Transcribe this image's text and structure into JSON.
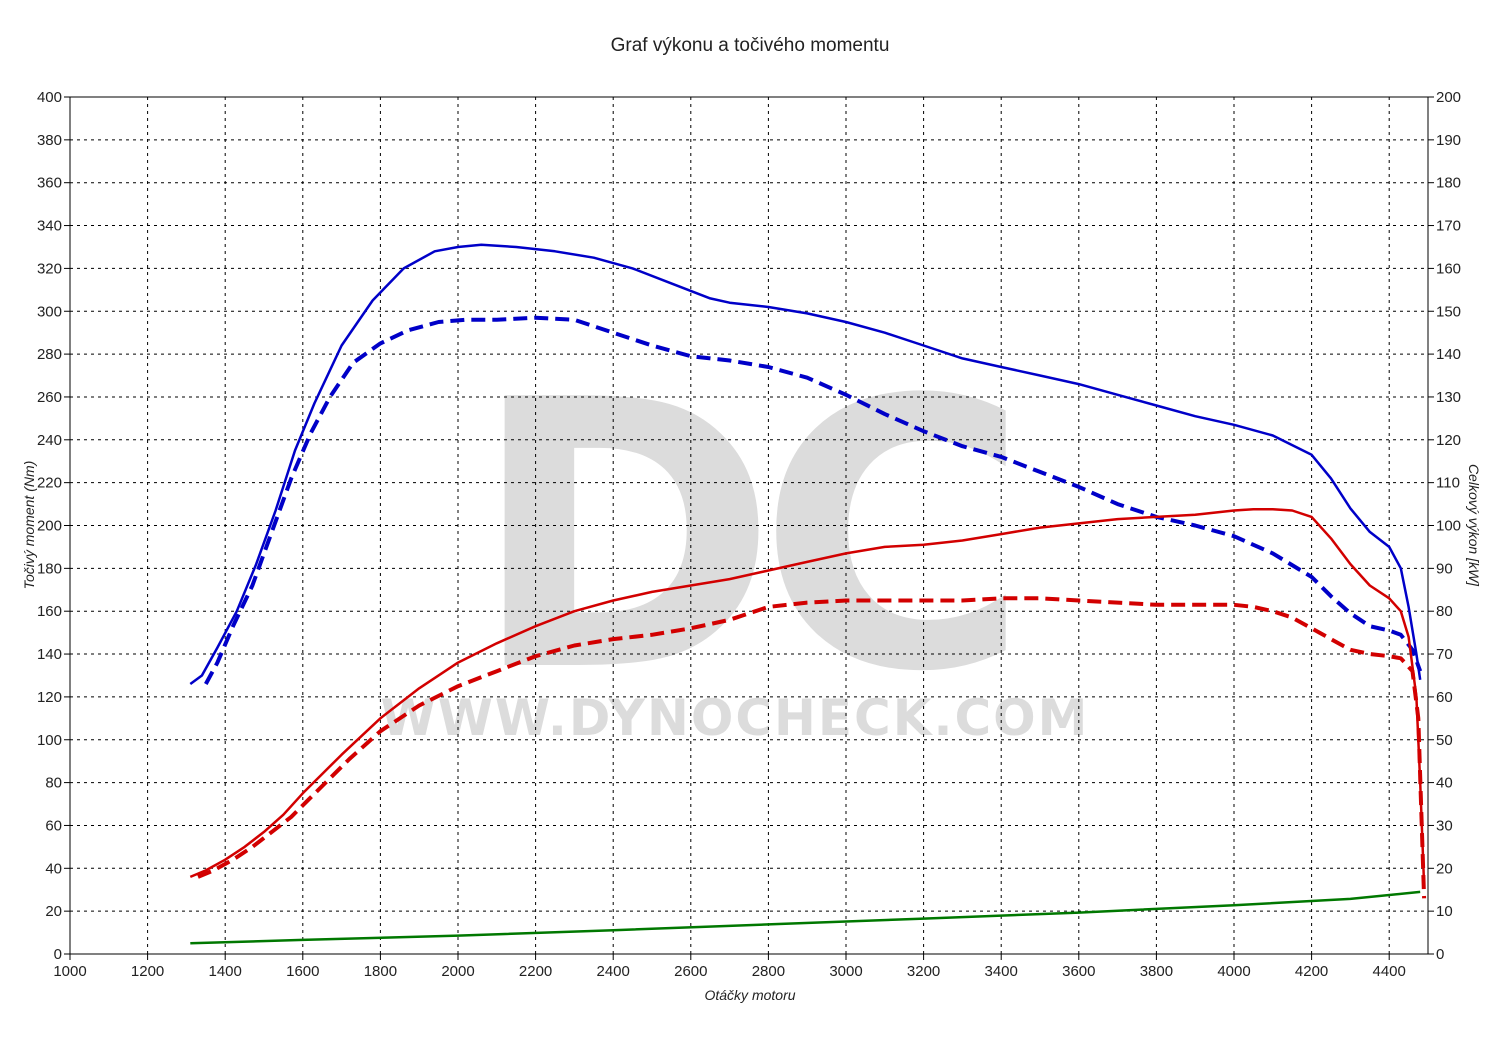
{
  "chart_data": {
    "type": "line",
    "title": "Graf výkonu a točivého momentu",
    "xlabel": "Otáčky motoru",
    "ylabel_left": "Točivý moment (Nm)",
    "ylabel_right": "Celkový výkon [kW]",
    "xlim": [
      1000,
      4500
    ],
    "ylim_left": [
      0,
      400
    ],
    "ylim_right": [
      0,
      200
    ],
    "x_ticks": [
      1000,
      1200,
      1400,
      1600,
      1800,
      2000,
      2200,
      2400,
      2600,
      2800,
      3000,
      3200,
      3400,
      3600,
      3800,
      4000,
      4200,
      4400
    ],
    "y_ticks_left": [
      0,
      20,
      40,
      60,
      80,
      100,
      120,
      140,
      160,
      180,
      200,
      220,
      240,
      260,
      280,
      300,
      320,
      340,
      360,
      380,
      400
    ],
    "y_ticks_right": [
      0,
      10,
      20,
      30,
      40,
      50,
      60,
      70,
      80,
      90,
      100,
      110,
      120,
      130,
      140,
      150,
      160,
      170,
      180,
      190,
      200
    ],
    "grid": true,
    "watermark": {
      "logo": "DC",
      "text": "WWW.DYNOCHECK.COM"
    },
    "series": [
      {
        "axis": "left",
        "color": "#0000c8",
        "dash": false,
        "width": 2.5,
        "x": [
          1310,
          1340,
          1380,
          1430,
          1480,
          1530,
          1580,
          1630,
          1700,
          1780,
          1860,
          1940,
          2000,
          2060,
          2150,
          2250,
          2350,
          2450,
          2550,
          2650,
          2700,
          2800,
          2900,
          3000,
          3100,
          3200,
          3300,
          3400,
          3500,
          3600,
          3700,
          3800,
          3900,
          4000,
          4100,
          4200,
          4250,
          4300,
          4350,
          4400,
          4430,
          4450,
          4470,
          4480
        ],
        "y": [
          126,
          130,
          143,
          160,
          182,
          207,
          235,
          257,
          284,
          305,
          320,
          328,
          330,
          331,
          330,
          328,
          325,
          320,
          313,
          306,
          304,
          302,
          299,
          295,
          290,
          284,
          278,
          274,
          270,
          266,
          261,
          256,
          251,
          247,
          242,
          233,
          222,
          208,
          197,
          190,
          180,
          162,
          140,
          128
        ]
      },
      {
        "axis": "left",
        "color": "#0000c8",
        "dash": true,
        "width": 4,
        "x": [
          1350,
          1380,
          1420,
          1470,
          1520,
          1570,
          1620,
          1670,
          1730,
          1800,
          1870,
          1950,
          2020,
          2100,
          2200,
          2300,
          2400,
          2500,
          2600,
          2700,
          2800,
          2900,
          3000,
          3100,
          3200,
          3300,
          3400,
          3500,
          3600,
          3700,
          3800,
          3900,
          4000,
          4100,
          4200,
          4250,
          4300,
          4350,
          4400,
          4430,
          4460,
          4480
        ],
        "y": [
          126,
          136,
          153,
          172,
          197,
          222,
          243,
          260,
          276,
          285,
          291,
          295,
          296,
          296,
          297,
          296,
          290,
          284,
          279,
          277,
          274,
          269,
          261,
          252,
          244,
          237,
          232,
          225,
          218,
          210,
          204,
          200,
          195,
          187,
          176,
          167,
          159,
          153,
          151,
          149,
          142,
          132
        ]
      },
      {
        "axis": "right",
        "color": "#d20000",
        "dash": false,
        "width": 2.5,
        "x": [
          1310,
          1350,
          1400,
          1450,
          1500,
          1550,
          1600,
          1650,
          1700,
          1800,
          1900,
          2000,
          2100,
          2200,
          2300,
          2400,
          2500,
          2600,
          2700,
          2800,
          2900,
          3000,
          3100,
          3200,
          3300,
          3400,
          3500,
          3600,
          3700,
          3800,
          3900,
          4000,
          4050,
          4100,
          4150,
          4200,
          4250,
          4300,
          4350,
          4400,
          4430,
          4450,
          4470,
          4480,
          4490
        ],
        "y": [
          18,
          19.5,
          22,
          25,
          28.5,
          32.5,
          37.5,
          42,
          46.5,
          55,
          62,
          68,
          72.5,
          76.5,
          80,
          82.5,
          84.5,
          86,
          87.5,
          89.5,
          91.5,
          93.5,
          95,
          95.5,
          96.5,
          98,
          99.5,
          100.5,
          101.5,
          102,
          102.5,
          103.5,
          103.8,
          103.8,
          103.5,
          102,
          97,
          91,
          86,
          83,
          80,
          74,
          60,
          40,
          16
        ]
      },
      {
        "axis": "right",
        "color": "#d20000",
        "dash": true,
        "width": 4,
        "x": [
          1330,
          1370,
          1420,
          1470,
          1520,
          1570,
          1620,
          1670,
          1720,
          1800,
          1900,
          2000,
          2100,
          2200,
          2300,
          2400,
          2500,
          2600,
          2700,
          2800,
          2900,
          3000,
          3100,
          3200,
          3300,
          3400,
          3500,
          3600,
          3700,
          3800,
          3900,
          4000,
          4050,
          4100,
          4150,
          4200,
          4250,
          4300,
          4350,
          4400,
          4430,
          4460,
          4475,
          4490
        ],
        "y": [
          18,
          19.5,
          22,
          25,
          28.5,
          32,
          36.5,
          41,
          45.5,
          52,
          58,
          62.5,
          66,
          69.5,
          72,
          73.5,
          74.5,
          76,
          78,
          81,
          82,
          82.5,
          82.5,
          82.5,
          82.5,
          83,
          83,
          82.5,
          82,
          81.5,
          81.5,
          81.5,
          81,
          80,
          78.5,
          76,
          73.5,
          71,
          70,
          69.5,
          69,
          66,
          55,
          13
        ]
      },
      {
        "axis": "left",
        "color": "#007800",
        "dash": false,
        "width": 2.5,
        "x": [
          1310,
          1600,
          2000,
          2400,
          2800,
          3200,
          3600,
          4000,
          4300,
          4480
        ],
        "y": [
          5,
          6.6,
          8.6,
          11.1,
          13.8,
          16.5,
          19.3,
          22.8,
          25.7,
          29
        ]
      }
    ]
  }
}
